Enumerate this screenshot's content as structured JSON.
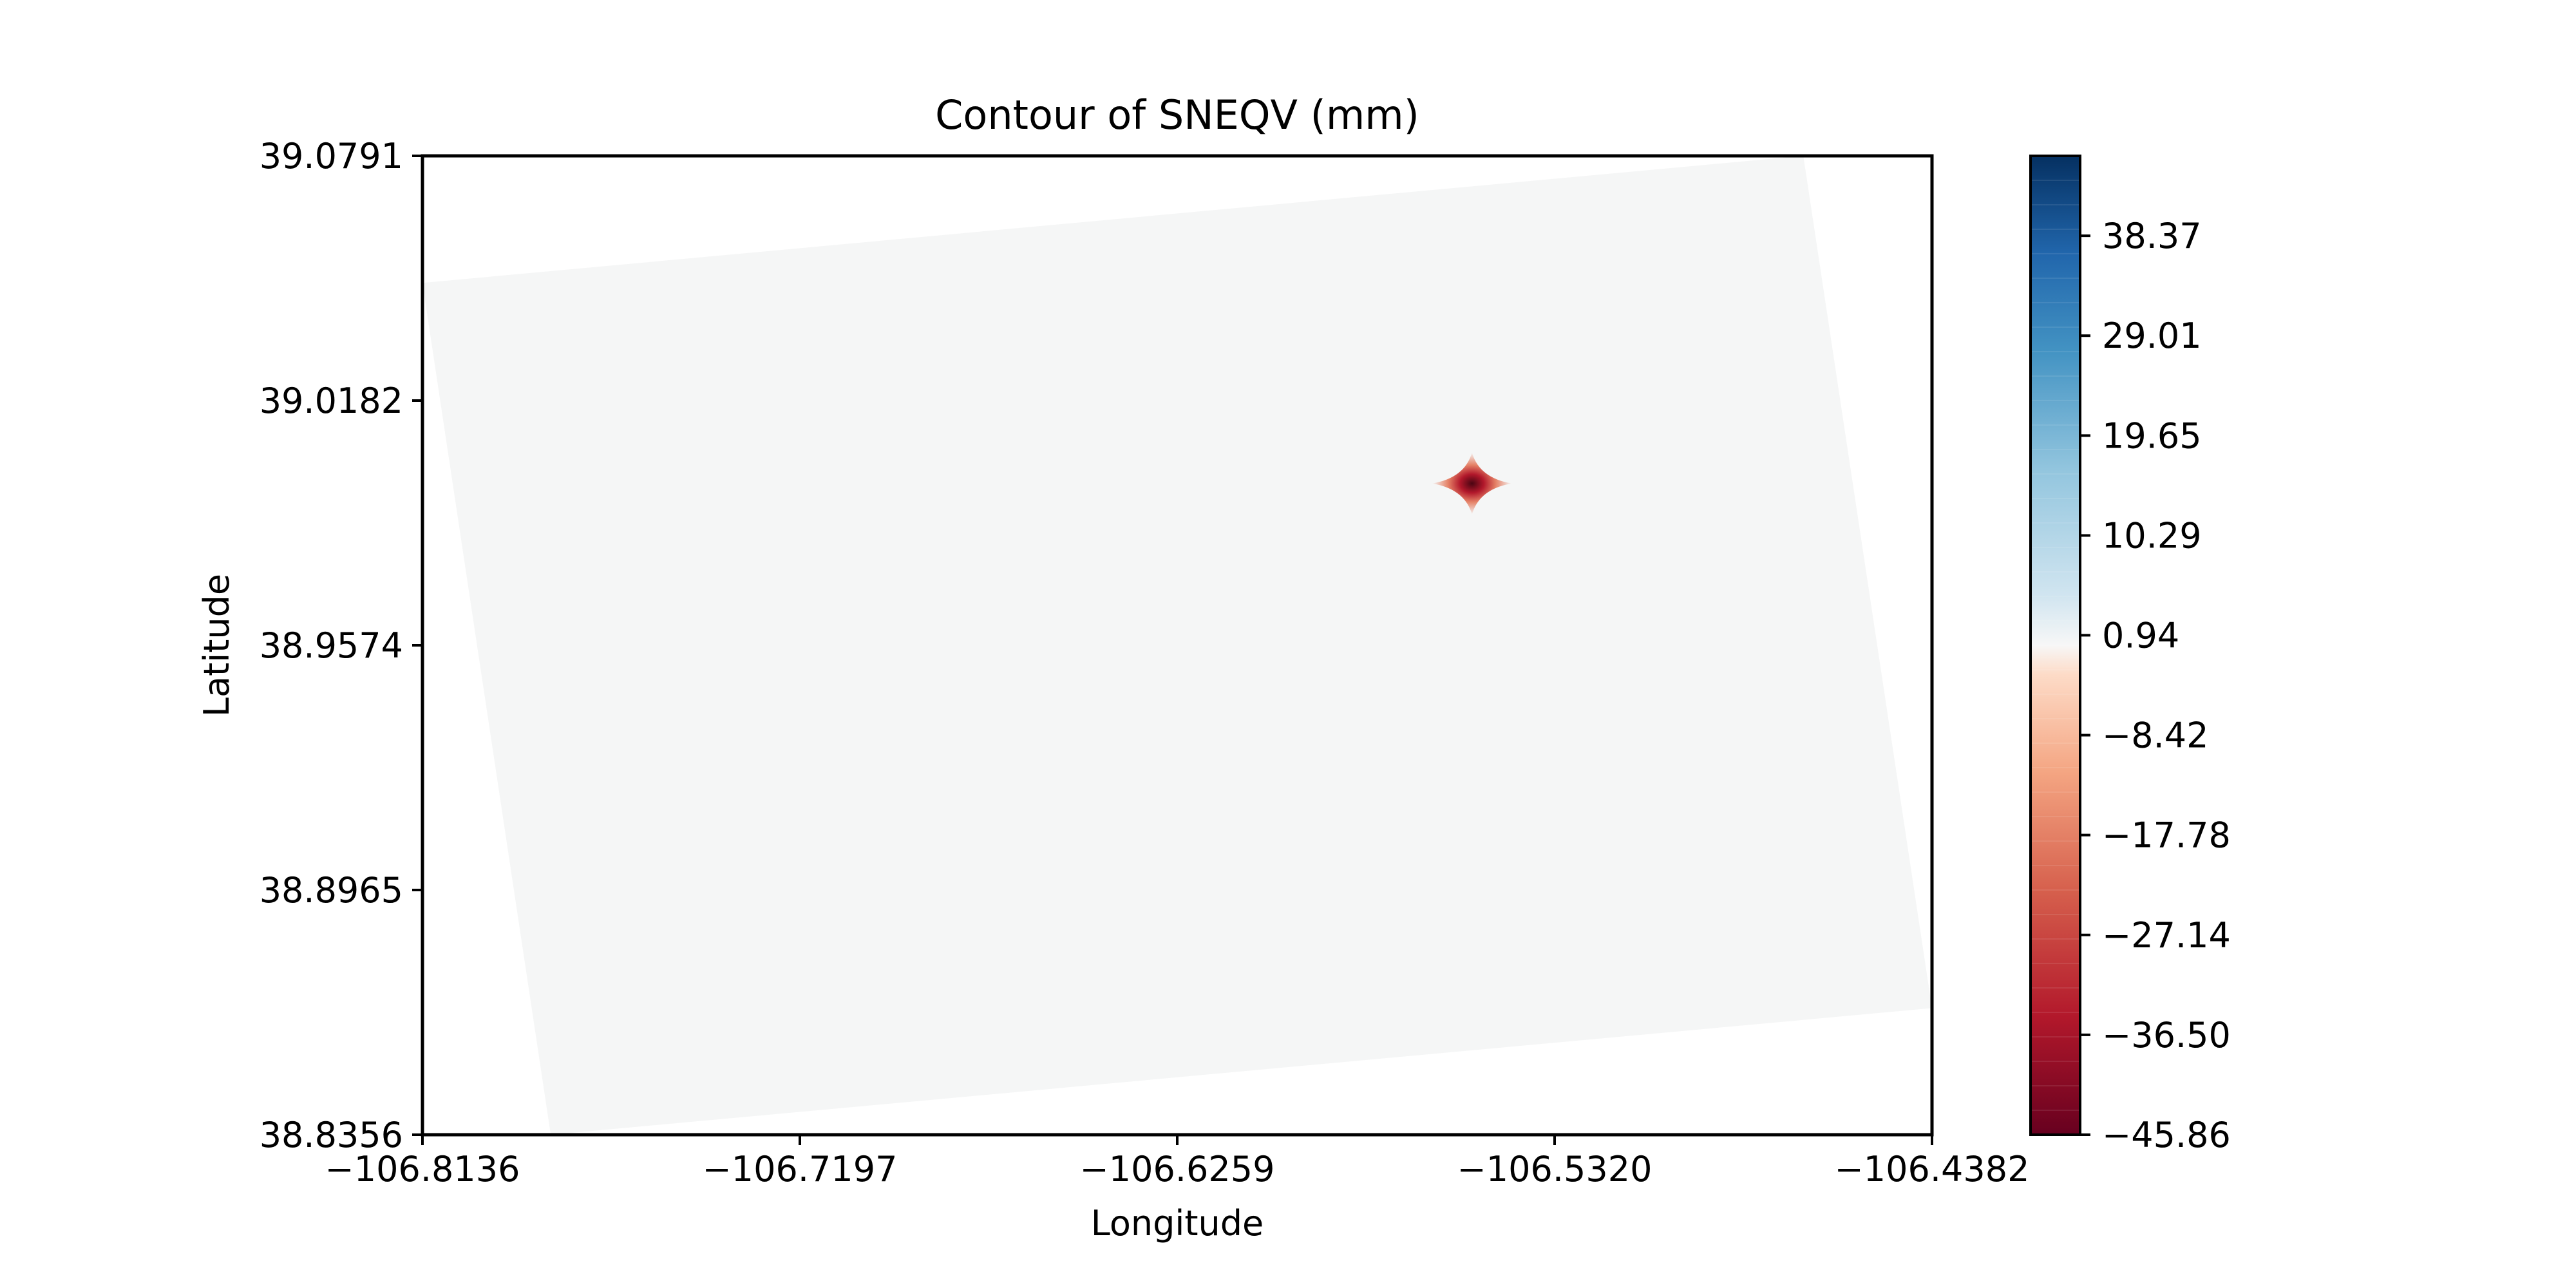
{
  "chart_data": {
    "type": "heatmap",
    "title": "Contour of SNEQV (mm)",
    "xlabel": "Longitude",
    "ylabel": "Latitude",
    "xlim": [
      -106.8136,
      -106.4382
    ],
    "ylim": [
      38.8356,
      39.0791
    ],
    "x_ticks": [
      "−106.8136",
      "−106.7197",
      "−106.6259",
      "−106.5320",
      "−106.4382"
    ],
    "y_ticks": [
      "38.8356",
      "38.8965",
      "38.9574",
      "39.0182",
      "39.0791"
    ],
    "grid": false,
    "colormap": "RdBu",
    "colorbar": {
      "min": -45.86,
      "max": 45.86,
      "levels": 40,
      "ticks": [
        -45.86,
        -36.5,
        -27.14,
        -17.78,
        -8.42,
        0.94,
        10.29,
        19.65,
        29.01,
        38.37
      ],
      "tick_labels": [
        "−45.86",
        "−36.50",
        "−27.14",
        "−17.78",
        "−8.42",
        "0.94",
        "10.29",
        "19.65",
        "29.01",
        "38.37"
      ]
    },
    "domain": {
      "fill_value": 0,
      "corners": [
        {
          "lon": -106.8136,
          "lat": 39.0475
        },
        {
          "lon": -106.4702,
          "lat": 39.0791
        },
        {
          "lon": -106.4382,
          "lat": 38.8671
        },
        {
          "lon": -106.7817,
          "lat": 38.8356
        }
      ]
    },
    "anomaly": {
      "lon": -106.5526,
      "lat": 38.9976,
      "min_value": -45.86,
      "half_width_lon": 0.0099,
      "half_height_lat": 0.0077
    }
  },
  "colors": {
    "domain_fill": "#f5f6f6",
    "axes": "#000000"
  }
}
